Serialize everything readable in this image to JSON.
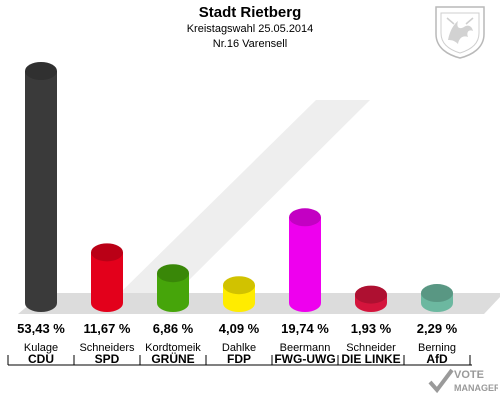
{
  "header": {
    "title": "Stadt Rietberg",
    "subtitle1": "Kreistagswahl 25.05.2014",
    "subtitle2": "Nr.16 Varensell"
  },
  "watermark": {
    "line1": "VOTE",
    "line2": "MANAGER"
  },
  "chart_data": {
    "type": "bar",
    "title": "Stadt Rietberg",
    "subtitle": "Kreistagswahl 25.05.2014 – Nr.16 Varensell",
    "categories": [
      "CDU",
      "SPD",
      "GRÜNE",
      "FDP",
      "FWG-UWG",
      "DIE LINKE",
      "AfD"
    ],
    "candidates": [
      "Kulage",
      "Schneiders",
      "Kordtomeik",
      "Dahlke",
      "Beermann",
      "Schneider",
      "Berning"
    ],
    "values": [
      53.43,
      11.67,
      6.86,
      4.09,
      19.74,
      1.93,
      2.29
    ],
    "value_labels": [
      "53,43 %",
      "11,67 %",
      "6,86 %",
      "4,09 %",
      "19,74 %",
      "1,93 %",
      "2,29 %"
    ],
    "colors": [
      "#3a3a3a",
      "#e3001b",
      "#46a50a",
      "#ffec00",
      "#ee00ee",
      "#d4143c",
      "#6cb8a0"
    ],
    "xlabel": "",
    "ylabel": "",
    "ylim": [
      0,
      53.43
    ],
    "grid": false,
    "legend": "none"
  }
}
